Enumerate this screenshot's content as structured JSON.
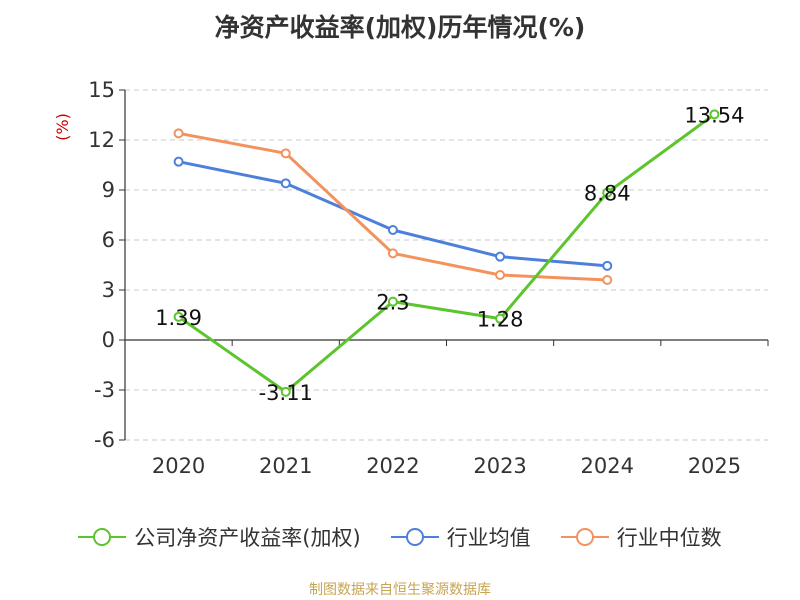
{
  "title": "净资产收益率(加权)历年情况(%)",
  "source": "制图数据来自恒生聚源数据库",
  "chart_data": {
    "type": "line",
    "title": "净资产收益率(加权)历年情况(%)",
    "ylabel": "(%)",
    "xlabel": "",
    "categories": [
      "2020",
      "2021",
      "2022",
      "2023",
      "2024",
      "2025"
    ],
    "ylim": [
      -6,
      15
    ],
    "yticks": [
      -6,
      -3,
      0,
      3,
      6,
      9,
      12,
      15
    ],
    "grid": true,
    "legend_position": "bottom",
    "series": [
      {
        "name": "公司净资产收益率(加权)",
        "color": "#5cc42c",
        "values": [
          1.39,
          -3.11,
          2.3,
          1.28,
          8.84,
          13.54
        ],
        "labels": [
          "1.39",
          "-3.11",
          "2.3",
          "1.28",
          "8.84",
          "13.54"
        ]
      },
      {
        "name": "行业均值",
        "color": "#4d80db",
        "values": [
          10.7,
          9.4,
          6.6,
          5.0,
          4.45,
          null
        ]
      },
      {
        "name": "行业中位数",
        "color": "#f4925e",
        "values": [
          12.4,
          11.2,
          5.2,
          3.9,
          3.6,
          null
        ]
      }
    ]
  }
}
